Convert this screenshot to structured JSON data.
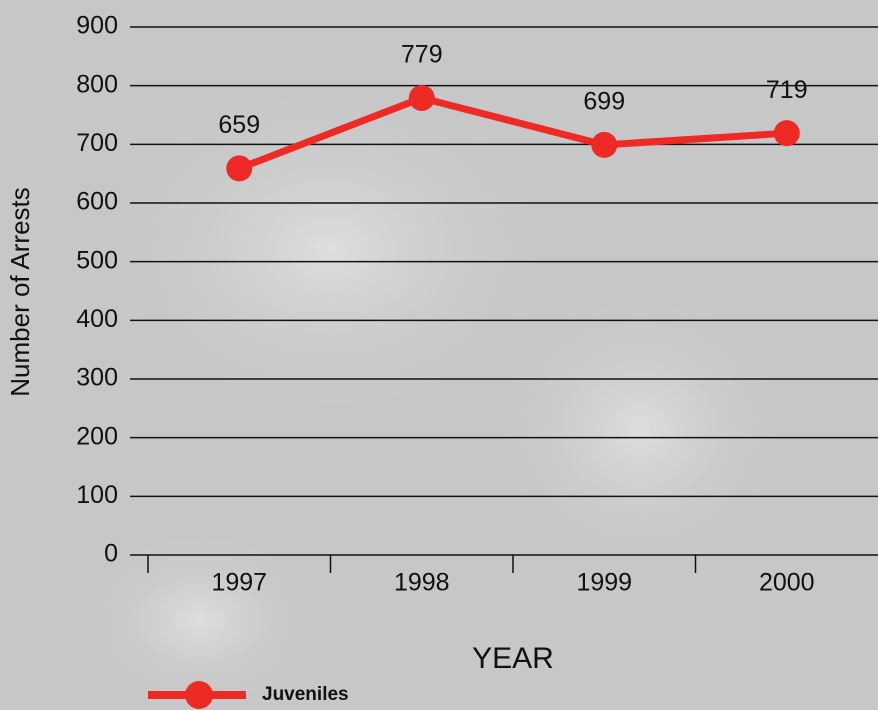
{
  "chart_data": {
    "type": "line",
    "x_label": "YEAR",
    "y_label": "Number of Arrests",
    "categories": [
      "1997",
      "1998",
      "1999",
      "2000"
    ],
    "series": [
      {
        "name": "Juveniles",
        "color": "#ee2a24",
        "values": [
          659,
          779,
          699,
          719
        ]
      }
    ],
    "ylim": [
      0,
      900
    ],
    "yticks": [
      0,
      100,
      200,
      300,
      400,
      500,
      600,
      700,
      800,
      900
    ],
    "grid": true,
    "legend": "bottom-left"
  }
}
